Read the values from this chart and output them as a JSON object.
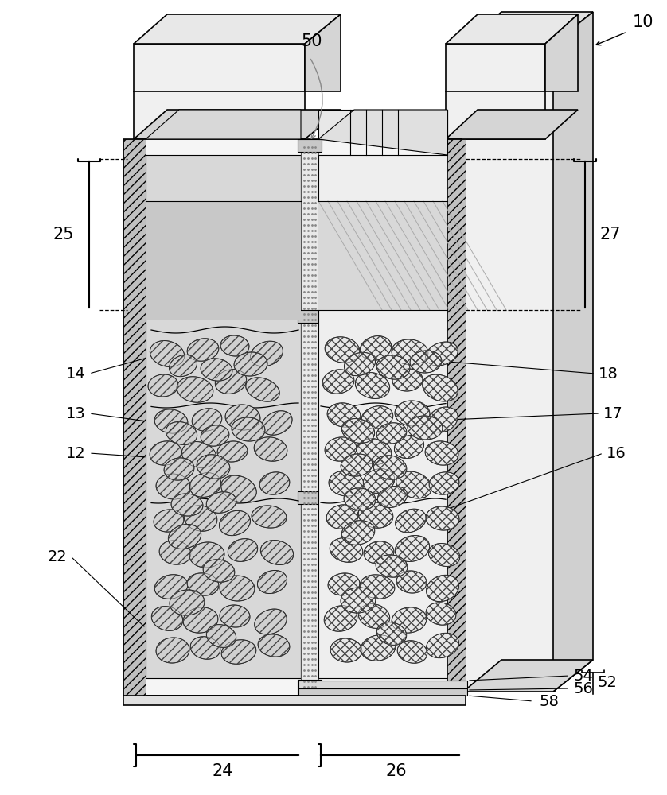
{
  "fig_width": 8.38,
  "fig_height": 10.0,
  "bg_color": "#ffffff",
  "left_particles": [
    [
      210,
      445,
      22,
      16,
      -15
    ],
    [
      255,
      440,
      20,
      14,
      10
    ],
    [
      295,
      435,
      18,
      13,
      -5
    ],
    [
      335,
      445,
      21,
      15,
      20
    ],
    [
      205,
      485,
      19,
      14,
      5
    ],
    [
      245,
      490,
      23,
      16,
      -10
    ],
    [
      290,
      480,
      20,
      15,
      15
    ],
    [
      330,
      490,
      22,
      14,
      -20
    ],
    [
      215,
      530,
      21,
      15,
      -8
    ],
    [
      260,
      528,
      19,
      14,
      12
    ],
    [
      305,
      525,
      22,
      16,
      -5
    ],
    [
      348,
      532,
      20,
      14,
      25
    ],
    [
      208,
      570,
      20,
      15,
      10
    ],
    [
      250,
      572,
      22,
      16,
      -15
    ],
    [
      292,
      568,
      19,
      13,
      5
    ],
    [
      340,
      565,
      21,
      15,
      -10
    ],
    [
      218,
      612,
      22,
      16,
      -5
    ],
    [
      258,
      610,
      20,
      15,
      15
    ],
    [
      300,
      615,
      23,
      16,
      -20
    ],
    [
      345,
      608,
      19,
      14,
      10
    ],
    [
      212,
      655,
      19,
      14,
      8
    ],
    [
      252,
      652,
      21,
      16,
      -12
    ],
    [
      295,
      658,
      20,
      15,
      20
    ],
    [
      338,
      650,
      22,
      14,
      -5
    ],
    [
      220,
      695,
      20,
      15,
      -10
    ],
    [
      260,
      698,
      22,
      16,
      5
    ],
    [
      305,
      692,
      19,
      14,
      15
    ],
    [
      348,
      695,
      21,
      15,
      -15
    ],
    [
      215,
      738,
      21,
      15,
      12
    ],
    [
      255,
      735,
      20,
      14,
      -8
    ],
    [
      298,
      740,
      22,
      16,
      -3
    ],
    [
      342,
      732,
      19,
      14,
      18
    ],
    [
      210,
      778,
      20,
      15,
      -15
    ],
    [
      252,
      780,
      22,
      16,
      8
    ],
    [
      295,
      775,
      19,
      14,
      -5
    ],
    [
      340,
      782,
      21,
      15,
      22
    ],
    [
      217,
      818,
      21,
      16,
      5
    ],
    [
      258,
      815,
      19,
      14,
      -12
    ],
    [
      300,
      820,
      22,
      15,
      10
    ],
    [
      344,
      812,
      20,
      14,
      -8
    ],
    [
      230,
      460,
      18,
      13,
      20
    ],
    [
      272,
      465,
      20,
      14,
      -8
    ],
    [
      315,
      458,
      21,
      15,
      5
    ],
    [
      228,
      545,
      20,
      14,
      -15
    ],
    [
      270,
      548,
      18,
      13,
      10
    ],
    [
      312,
      540,
      21,
      15,
      -5
    ],
    [
      225,
      590,
      19,
      14,
      8
    ],
    [
      268,
      587,
      21,
      15,
      -10
    ],
    [
      235,
      635,
      20,
      14,
      -5
    ],
    [
      278,
      632,
      19,
      13,
      12
    ],
    [
      232,
      675,
      21,
      15,
      15
    ],
    [
      275,
      718,
      20,
      14,
      -10
    ],
    [
      235,
      758,
      22,
      16,
      5
    ],
    [
      278,
      800,
      19,
      14,
      -15
    ]
  ],
  "right_particles": [
    [
      430,
      440,
      22,
      16,
      -10
    ],
    [
      472,
      438,
      20,
      15,
      15
    ],
    [
      515,
      443,
      23,
      16,
      -5
    ],
    [
      555,
      445,
      21,
      14,
      20
    ],
    [
      425,
      480,
      20,
      15,
      10
    ],
    [
      468,
      485,
      22,
      16,
      -15
    ],
    [
      512,
      478,
      19,
      14,
      5
    ],
    [
      553,
      488,
      23,
      16,
      -20
    ],
    [
      432,
      522,
      21,
      15,
      -8
    ],
    [
      474,
      525,
      20,
      14,
      12
    ],
    [
      518,
      520,
      22,
      16,
      -3
    ],
    [
      556,
      528,
      20,
      15,
      25
    ],
    [
      428,
      565,
      20,
      15,
      8
    ],
    [
      470,
      568,
      22,
      16,
      -12
    ],
    [
      514,
      562,
      19,
      14,
      18
    ],
    [
      555,
      570,
      21,
      15,
      -8
    ],
    [
      435,
      608,
      22,
      16,
      -5
    ],
    [
      476,
      605,
      20,
      15,
      15
    ],
    [
      520,
      610,
      23,
      16,
      -20
    ],
    [
      558,
      608,
      19,
      14,
      10
    ],
    [
      430,
      650,
      20,
      15,
      10
    ],
    [
      472,
      648,
      22,
      16,
      -10
    ],
    [
      516,
      655,
      20,
      14,
      20
    ],
    [
      556,
      652,
      21,
      15,
      -5
    ],
    [
      435,
      692,
      21,
      15,
      -12
    ],
    [
      476,
      695,
      19,
      14,
      8
    ],
    [
      518,
      690,
      22,
      16,
      15
    ],
    [
      558,
      698,
      20,
      14,
      -15
    ],
    [
      432,
      735,
      20,
      14,
      5
    ],
    [
      474,
      738,
      22,
      15,
      -8
    ],
    [
      517,
      732,
      19,
      14,
      -5
    ],
    [
      556,
      740,
      21,
      16,
      20
    ],
    [
      428,
      778,
      21,
      16,
      12
    ],
    [
      470,
      775,
      20,
      15,
      -15
    ],
    [
      514,
      780,
      22,
      16,
      8
    ],
    [
      554,
      772,
      19,
      14,
      -10
    ],
    [
      435,
      818,
      20,
      15,
      -5
    ],
    [
      475,
      815,
      22,
      16,
      10
    ],
    [
      518,
      820,
      19,
      14,
      -12
    ],
    [
      556,
      812,
      21,
      15,
      18
    ],
    [
      452,
      458,
      20,
      14,
      18
    ],
    [
      494,
      462,
      21,
      15,
      -8
    ],
    [
      535,
      455,
      20,
      14,
      5
    ],
    [
      450,
      542,
      21,
      15,
      -15
    ],
    [
      492,
      545,
      19,
      13,
      10
    ],
    [
      534,
      538,
      22,
      15,
      -3
    ],
    [
      448,
      585,
      20,
      14,
      8
    ],
    [
      490,
      588,
      21,
      15,
      -10
    ],
    [
      452,
      628,
      20,
      14,
      -5
    ],
    [
      493,
      625,
      19,
      13,
      15
    ],
    [
      450,
      670,
      21,
      15,
      12
    ],
    [
      492,
      712,
      20,
      14,
      -8
    ],
    [
      450,
      755,
      22,
      16,
      5
    ],
    [
      492,
      797,
      19,
      14,
      -15
    ]
  ]
}
